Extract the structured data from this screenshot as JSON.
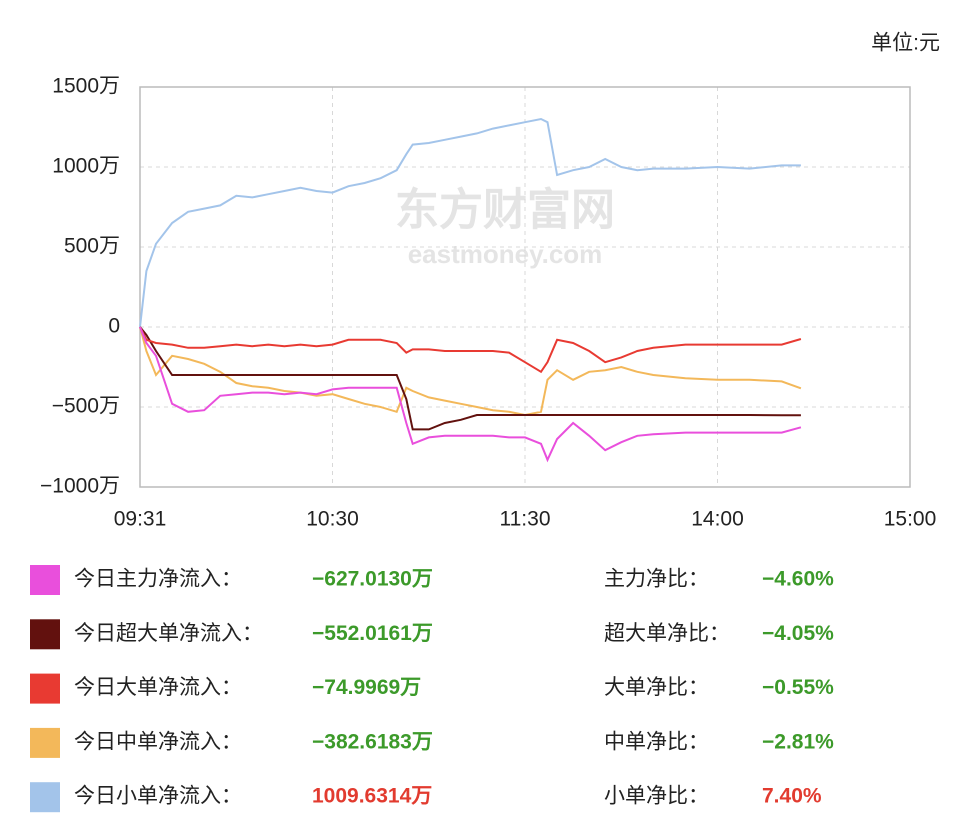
{
  "chart_data": {
    "type": "line",
    "unit_note": "单位:元",
    "watermark": [
      "东方财富网",
      "eastmoney.com"
    ],
    "x": [
      0,
      2,
      5,
      10,
      15,
      20,
      25,
      30,
      35,
      40,
      45,
      50,
      55,
      60,
      65,
      70,
      75,
      80,
      83,
      85,
      90,
      95,
      100,
      105,
      110,
      115,
      120,
      125,
      127,
      130,
      135,
      140,
      145,
      150,
      155,
      160,
      170,
      180,
      190,
      200,
      206
    ],
    "xlim": [
      0,
      240
    ],
    "xticks": [
      {
        "value": 0,
        "label": "09:31"
      },
      {
        "value": 60,
        "label": "10:30"
      },
      {
        "value": 120,
        "label": "11:30"
      },
      {
        "value": 180,
        "label": "14:00"
      },
      {
        "value": 240,
        "label": "15:00"
      }
    ],
    "ylim": [
      -1000,
      1500
    ],
    "yticks": [
      {
        "value": -1000,
        "label": "−1000万"
      },
      {
        "value": -500,
        "label": "−500万"
      },
      0,
      {
        "value": 500,
        "label": "500万"
      },
      {
        "value": 1000,
        "label": "1000万"
      },
      {
        "value": 1500,
        "label": "1500万"
      }
    ],
    "grid": true,
    "series": [
      {
        "name": "今日主力净流入：",
        "color": "#e94fdc",
        "total_label": "−627.0130万",
        "ratio_name": "主力净比：",
        "ratio_label": "−4.60%",
        "value_color": "#3c9a2a",
        "values": [
          0,
          -100,
          -180,
          -480,
          -530,
          -520,
          -430,
          -420,
          -410,
          -410,
          -420,
          -410,
          -420,
          -390,
          -380,
          -380,
          -380,
          -380,
          -600,
          -730,
          -690,
          -680,
          -680,
          -680,
          -680,
          -690,
          -690,
          -730,
          -830,
          -700,
          -600,
          -680,
          -770,
          -720,
          -680,
          -670,
          -660,
          -660,
          -660,
          -660,
          -627
        ]
      },
      {
        "name": "今日超大单净流入：",
        "color": "#62110e",
        "total_label": "−552.0161万",
        "ratio_name": "超大单净比：",
        "ratio_label": "−4.05%",
        "value_color": "#3c9a2a",
        "values": [
          0,
          -50,
          -150,
          -300,
          -300,
          -300,
          -300,
          -300,
          -300,
          -300,
          -300,
          -300,
          -300,
          -300,
          -300,
          -300,
          -300,
          -300,
          -450,
          -640,
          -640,
          -600,
          -580,
          -550,
          -550,
          -550,
          -550,
          -550,
          -550,
          -550,
          -550,
          -550,
          -550,
          -550,
          -550,
          -550,
          -550,
          -550,
          -550,
          -552,
          -552
        ]
      },
      {
        "name": "今日大单净流入：",
        "color": "#e83a32",
        "total_label": "−74.9969万",
        "ratio_name": "大单净比：",
        "ratio_label": "−0.55%",
        "value_color": "#3c9a2a",
        "values": [
          0,
          -80,
          -100,
          -110,
          -130,
          -130,
          -120,
          -110,
          -120,
          -110,
          -120,
          -110,
          -120,
          -110,
          -80,
          -80,
          -80,
          -100,
          -160,
          -140,
          -140,
          -150,
          -150,
          -150,
          -150,
          -160,
          -220,
          -280,
          -220,
          -80,
          -100,
          -150,
          -220,
          -190,
          -150,
          -130,
          -110,
          -110,
          -110,
          -110,
          -75
        ]
      },
      {
        "name": "今日中单净流入：",
        "color": "#f3b85a",
        "total_label": "−382.6183万",
        "ratio_name": "中单净比：",
        "ratio_label": "−2.81%",
        "value_color": "#3c9a2a",
        "values": [
          0,
          -150,
          -300,
          -180,
          -200,
          -230,
          -280,
          -350,
          -370,
          -380,
          -400,
          -410,
          -430,
          -420,
          -450,
          -480,
          -500,
          -530,
          -380,
          -400,
          -440,
          -460,
          -480,
          -500,
          -520,
          -530,
          -550,
          -530,
          -330,
          -270,
          -330,
          -280,
          -270,
          -250,
          -280,
          -300,
          -320,
          -330,
          -330,
          -340,
          -383
        ]
      },
      {
        "name": "今日小单净流入：",
        "color": "#a3c4ea",
        "total_label": "1009.6314万",
        "ratio_name": "小单净比：",
        "ratio_label": "7.40%",
        "value_color": "#e23b2f",
        "values": [
          0,
          350,
          520,
          650,
          720,
          740,
          760,
          820,
          810,
          830,
          850,
          870,
          850,
          840,
          880,
          900,
          930,
          980,
          1080,
          1140,
          1150,
          1170,
          1190,
          1210,
          1240,
          1260,
          1280,
          1300,
          1280,
          950,
          980,
          1000,
          1050,
          1000,
          980,
          990,
          990,
          1000,
          990,
          1010,
          1010
        ]
      }
    ]
  }
}
